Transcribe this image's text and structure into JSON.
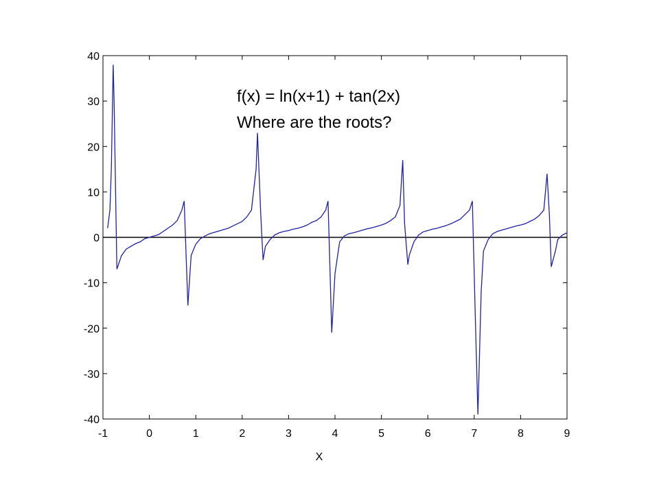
{
  "chart_data": {
    "type": "line",
    "annotations": [
      "f(x) = ln(x+1) + tan(2x)",
      "Where are the roots?"
    ],
    "xlabel": "X",
    "xlim": [
      -1,
      9
    ],
    "ylim": [
      -40,
      40
    ],
    "xticks": [
      -1,
      0,
      1,
      2,
      3,
      4,
      5,
      6,
      7,
      8,
      9
    ],
    "yticks": [
      -40,
      -30,
      -20,
      -10,
      0,
      10,
      20,
      30,
      40
    ],
    "color": "#1f1fa8",
    "x": [
      -0.9,
      -0.85,
      -0.82,
      -0.8,
      -0.78,
      -0.76,
      -0.72,
      -0.7,
      -0.6,
      -0.5,
      -0.4,
      -0.3,
      -0.2,
      -0.1,
      0,
      0.1,
      0.2,
      0.3,
      0.4,
      0.5,
      0.6,
      0.7,
      0.75,
      0.83,
      0.9,
      1.0,
      1.1,
      1.2,
      1.3,
      1.4,
      1.5,
      1.6,
      1.7,
      1.8,
      1.9,
      2.0,
      2.1,
      2.2,
      2.3,
      2.33,
      2.4,
      2.45,
      2.5,
      2.6,
      2.7,
      2.8,
      2.9,
      3.0,
      3.1,
      3.2,
      3.3,
      3.4,
      3.5,
      3.6,
      3.7,
      3.8,
      3.85,
      3.9,
      3.93,
      4.0,
      4.1,
      4.2,
      4.3,
      4.4,
      4.5,
      4.6,
      4.7,
      4.8,
      4.9,
      5.0,
      5.1,
      5.2,
      5.3,
      5.4,
      5.46,
      5.5,
      5.57,
      5.6,
      5.7,
      5.8,
      5.9,
      6.0,
      6.1,
      6.2,
      6.3,
      6.4,
      6.5,
      6.6,
      6.7,
      6.8,
      6.9,
      6.96,
      7.03,
      7.08,
      7.15,
      7.2,
      7.3,
      7.4,
      7.5,
      7.6,
      7.7,
      7.8,
      7.9,
      8.0,
      8.1,
      8.2,
      8.3,
      8.4,
      8.5,
      8.57,
      8.62,
      8.66,
      8.75,
      8.8,
      8.9,
      9.0
    ],
    "values": [
      2,
      6,
      15,
      26,
      38,
      30,
      5,
      -7,
      -4,
      -2.6,
      -2,
      -1.4,
      -1,
      -0.3,
      0,
      0.3,
      0.6,
      1.3,
      2,
      2.7,
      3.7,
      6,
      8,
      -15,
      -4,
      -1.5,
      -0.3,
      0.3,
      0.8,
      1.1,
      1.4,
      1.7,
      2,
      2.5,
      3,
      3.5,
      4.5,
      6,
      15,
      23,
      5,
      -5,
      -2,
      -0.5,
      0.5,
      1,
      1.3,
      1.5,
      1.8,
      2,
      2.3,
      2.7,
      3.3,
      3.7,
      4.5,
      6,
      8,
      -10,
      -21,
      -8,
      -1,
      0.3,
      0.8,
      1,
      1.3,
      1.6,
      1.9,
      2.1,
      2.4,
      2.7,
      3.1,
      3.7,
      4.5,
      7,
      17,
      3,
      -6,
      -4,
      -1,
      0.5,
      1.2,
      1.5,
      1.8,
      2,
      2.3,
      2.6,
      3,
      3.5,
      4,
      5,
      6,
      8,
      -20,
      -39,
      -12,
      -3,
      -0.5,
      0.8,
      1.3,
      1.6,
      1.9,
      2.2,
      2.5,
      2.7,
      3,
      3.5,
      4,
      4.8,
      6,
      14,
      5,
      -6.5,
      -3,
      -0.5,
      0.5,
      1
    ]
  }
}
